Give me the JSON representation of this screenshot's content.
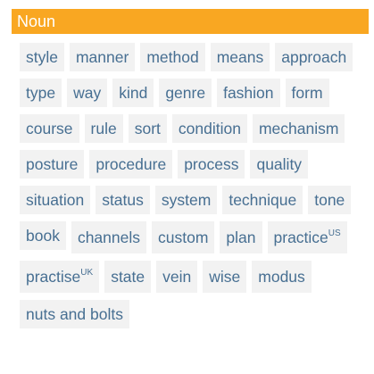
{
  "header": {
    "title": "Noun",
    "background": "#f9a722",
    "text_color": "#ffffff"
  },
  "chip_style": {
    "background": "#f2f2f2",
    "text_color": "#476f92"
  },
  "words": [
    {
      "label": "style",
      "sup": ""
    },
    {
      "label": "manner",
      "sup": ""
    },
    {
      "label": "method",
      "sup": ""
    },
    {
      "label": "means",
      "sup": ""
    },
    {
      "label": "approach",
      "sup": ""
    },
    {
      "label": "type",
      "sup": ""
    },
    {
      "label": "way",
      "sup": ""
    },
    {
      "label": "kind",
      "sup": ""
    },
    {
      "label": "genre",
      "sup": ""
    },
    {
      "label": "fashion",
      "sup": ""
    },
    {
      "label": "form",
      "sup": ""
    },
    {
      "label": "course",
      "sup": ""
    },
    {
      "label": "rule",
      "sup": ""
    },
    {
      "label": "sort",
      "sup": ""
    },
    {
      "label": "condition",
      "sup": ""
    },
    {
      "label": "mechanism",
      "sup": ""
    },
    {
      "label": "posture",
      "sup": ""
    },
    {
      "label": "procedure",
      "sup": ""
    },
    {
      "label": "process",
      "sup": ""
    },
    {
      "label": "quality",
      "sup": ""
    },
    {
      "label": "situation",
      "sup": ""
    },
    {
      "label": "status",
      "sup": ""
    },
    {
      "label": "system",
      "sup": ""
    },
    {
      "label": "technique",
      "sup": ""
    },
    {
      "label": "tone",
      "sup": ""
    },
    {
      "label": "book",
      "sup": ""
    },
    {
      "label": "channels",
      "sup": ""
    },
    {
      "label": "custom",
      "sup": ""
    },
    {
      "label": "plan",
      "sup": ""
    },
    {
      "label": "practice",
      "sup": "US"
    },
    {
      "label": "practise",
      "sup": "UK"
    },
    {
      "label": "state",
      "sup": ""
    },
    {
      "label": "vein",
      "sup": ""
    },
    {
      "label": "wise",
      "sup": ""
    },
    {
      "label": "modus",
      "sup": ""
    },
    {
      "label": "nuts and bolts",
      "sup": ""
    }
  ]
}
